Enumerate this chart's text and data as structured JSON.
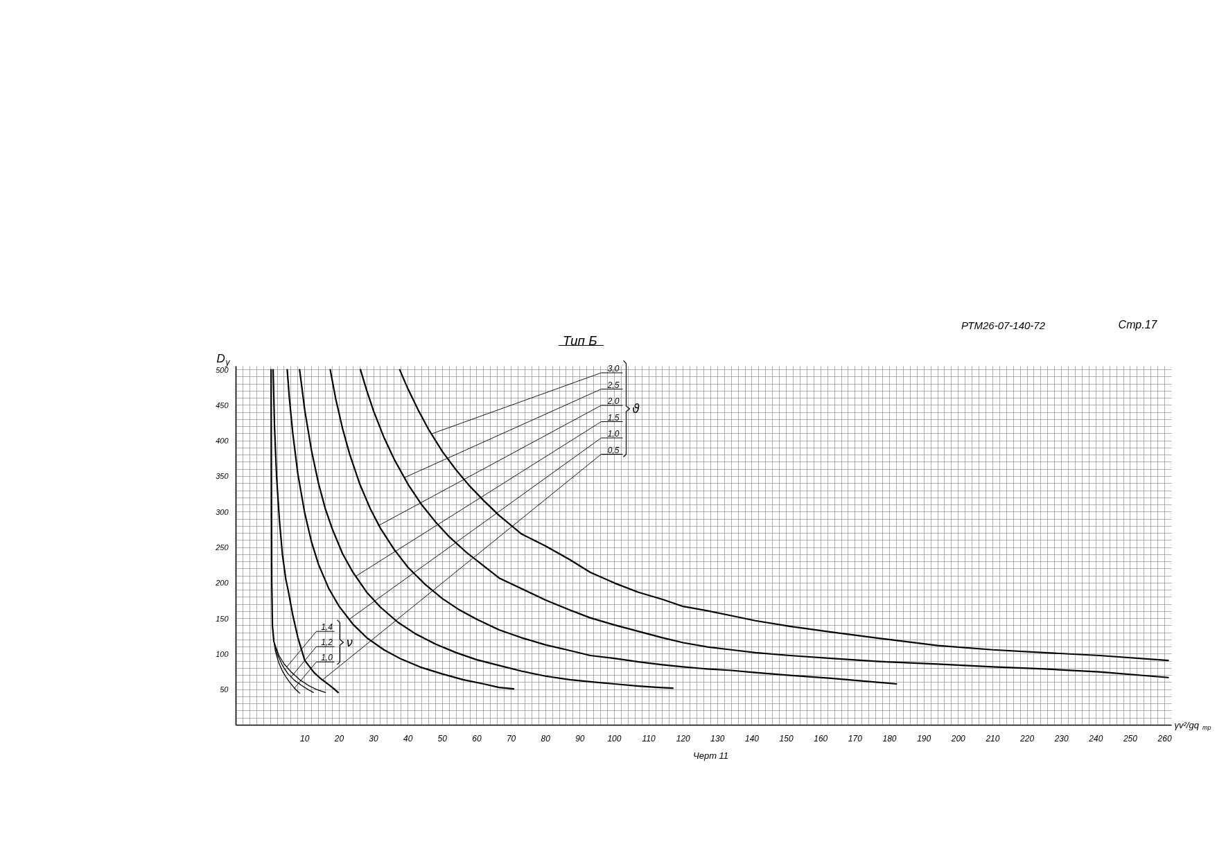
{
  "chart_data": {
    "type": "line",
    "title": "Тип Б",
    "xlabel": "γv²/gq$_{тр}$",
    "ylabel": "D$_{у}$",
    "annotations": [
      "РТМ26-07-140-72",
      "Стр.17",
      "Черт 11",
      "ϑ",
      "ν"
    ],
    "legend": "top left",
    "xlim": [
      -10,
      262
    ],
    "ylim": [
      0,
      505
    ],
    "xticks": [
      {
        "value": -10,
        "label": null
      },
      {
        "value": -8,
        "label": null
      },
      {
        "value": -6,
        "label": null
      },
      {
        "value": -4,
        "label": null
      },
      {
        "value": -2,
        "label": null
      },
      {
        "value": 0,
        "label": null
      },
      {
        "value": 2,
        "label": null
      },
      {
        "value": 4,
        "label": null
      },
      {
        "value": 6,
        "label": null
      },
      {
        "value": 8,
        "label": null
      },
      10,
      {
        "value": 12,
        "label": null
      },
      {
        "value": 14,
        "label": null
      },
      {
        "value": 16,
        "label": null
      },
      {
        "value": 18,
        "label": null
      },
      20,
      {
        "value": 22,
        "label": null
      },
      {
        "value": 24,
        "label": null
      },
      {
        "value": 26,
        "label": null
      },
      {
        "value": 28,
        "label": null
      },
      30,
      {
        "value": 32,
        "label": null
      },
      {
        "value": 34,
        "label": null
      },
      {
        "value": 36,
        "label": null
      },
      {
        "value": 38,
        "label": null
      },
      40,
      {
        "value": 42,
        "label": null
      },
      {
        "value": 44,
        "label": null
      },
      {
        "value": 46,
        "label": null
      },
      {
        "value": 48,
        "label": null
      },
      50,
      {
        "value": 52,
        "label": null
      },
      {
        "value": 54,
        "label": null
      },
      {
        "value": 56,
        "label": null
      },
      {
        "value": 58,
        "label": null
      },
      60,
      {
        "value": 62,
        "label": null
      },
      {
        "value": 64,
        "label": null
      },
      {
        "value": 66,
        "label": null
      },
      {
        "value": 68,
        "label": null
      },
      70,
      {
        "value": 72,
        "label": null
      },
      {
        "value": 74,
        "label": null
      },
      {
        "value": 76,
        "label": null
      },
      {
        "value": 78,
        "label": null
      },
      80,
      {
        "value": 82,
        "label": null
      },
      {
        "value": 84,
        "label": null
      },
      {
        "value": 86,
        "label": null
      },
      {
        "value": 88,
        "label": null
      },
      90,
      {
        "value": 92,
        "label": null
      },
      {
        "value": 94,
        "label": null
      },
      {
        "value": 96,
        "label": null
      },
      {
        "value": 98,
        "label": null
      },
      100,
      {
        "value": 102,
        "label": null
      },
      {
        "value": 104,
        "label": null
      },
      {
        "value": 106,
        "label": null
      },
      {
        "value": 108,
        "label": null
      },
      110,
      {
        "value": 112,
        "label": null
      },
      {
        "value": 114,
        "label": null
      },
      {
        "value": 116,
        "label": null
      },
      {
        "value": 118,
        "label": null
      },
      120,
      {
        "value": 122,
        "label": null
      },
      {
        "value": 124,
        "label": null
      },
      {
        "value": 126,
        "label": null
      },
      {
        "value": 128,
        "label": null
      },
      130,
      {
        "value": 132,
        "label": null
      },
      {
        "value": 134,
        "label": null
      },
      {
        "value": 136,
        "label": null
      },
      {
        "value": 138,
        "label": null
      },
      140,
      {
        "value": 142,
        "label": null
      },
      {
        "value": 144,
        "label": null
      },
      {
        "value": 146,
        "label": null
      },
      {
        "value": 148,
        "label": null
      },
      150,
      {
        "value": 152,
        "label": null
      },
      {
        "value": 154,
        "label": null
      },
      {
        "value": 156,
        "label": null
      },
      {
        "value": 158,
        "label": null
      },
      160,
      {
        "value": 162,
        "label": null
      },
      {
        "value": 164,
        "label": null
      },
      {
        "value": 166,
        "label": null
      },
      {
        "value": 168,
        "label": null
      },
      170,
      {
        "value": 172,
        "label": null
      },
      {
        "value": 174,
        "label": null
      },
      {
        "value": 176,
        "label": null
      },
      {
        "value": 178,
        "label": null
      },
      180,
      {
        "value": 182,
        "label": null
      },
      {
        "value": 184,
        "label": null
      },
      {
        "value": 186,
        "label": null
      },
      {
        "value": 188,
        "label": null
      },
      190,
      {
        "value": 192,
        "label": null
      },
      {
        "value": 194,
        "label": null
      },
      {
        "value": 196,
        "label": null
      },
      {
        "value": 198,
        "label": null
      },
      200,
      {
        "value": 202,
        "label": null
      },
      {
        "value": 204,
        "label": null
      },
      {
        "value": 206,
        "label": null
      },
      {
        "value": 208,
        "label": null
      },
      210,
      {
        "value": 212,
        "label": null
      },
      {
        "value": 214,
        "label": null
      },
      {
        "value": 216,
        "label": null
      },
      {
        "value": 218,
        "label": null
      },
      220,
      {
        "value": 222,
        "label": null
      },
      {
        "value": 224,
        "label": null
      },
      {
        "value": 226,
        "label": null
      },
      {
        "value": 228,
        "label": null
      },
      230,
      {
        "value": 232,
        "label": null
      },
      {
        "value": 234,
        "label": null
      },
      {
        "value": 236,
        "label": null
      },
      {
        "value": 238,
        "label": null
      },
      240,
      {
        "value": 242,
        "label": null
      },
      {
        "value": 244,
        "label": null
      },
      {
        "value": 246,
        "label": null
      },
      {
        "value": 248,
        "label": null
      },
      250,
      {
        "value": 252,
        "label": null
      },
      {
        "value": 254,
        "label": null
      },
      {
        "value": 256,
        "label": null
      },
      {
        "value": 258,
        "label": null
      },
      260
    ],
    "yticks": [
      {
        "value": 0,
        "label": null
      },
      {
        "value": 10,
        "label": null
      },
      {
        "value": 20,
        "label": null
      },
      {
        "value": 30,
        "label": null
      },
      {
        "value": 40,
        "label": null
      },
      50,
      {
        "value": 60,
        "label": null
      },
      {
        "value": 70,
        "label": null
      },
      {
        "value": 80,
        "label": null
      },
      {
        "value": 90,
        "label": null
      },
      100,
      {
        "value": 110,
        "label": null
      },
      {
        "value": 120,
        "label": null
      },
      {
        "value": 130,
        "label": null
      },
      {
        "value": 140,
        "label": null
      },
      150,
      {
        "value": 160,
        "label": null
      },
      {
        "value": 170,
        "label": null
      },
      {
        "value": 180,
        "label": null
      },
      {
        "value": 190,
        "label": null
      },
      200,
      {
        "value": 210,
        "label": null
      },
      {
        "value": 220,
        "label": null
      },
      {
        "value": 230,
        "label": null
      },
      {
        "value": 240,
        "label": null
      },
      250,
      {
        "value": 260,
        "label": null
      },
      {
        "value": 270,
        "label": null
      },
      {
        "value": 280,
        "label": null
      },
      {
        "value": 290,
        "label": null
      },
      300,
      {
        "value": 310,
        "label": null
      },
      {
        "value": 320,
        "label": null
      },
      {
        "value": 330,
        "label": null
      },
      {
        "value": 340,
        "label": null
      },
      350,
      {
        "value": 360,
        "label": null
      },
      {
        "value": 370,
        "label": null
      },
      {
        "value": 380,
        "label": null
      },
      {
        "value": 390,
        "label": null
      },
      400,
      {
        "value": 410,
        "label": null
      },
      {
        "value": 420,
        "label": null
      },
      {
        "value": 430,
        "label": null
      },
      {
        "value": 440,
        "label": null
      },
      450,
      {
        "value": 460,
        "label": null
      },
      {
        "value": 470,
        "label": null
      },
      {
        "value": 480,
        "label": null
      },
      {
        "value": 490,
        "label": null
      },
      500
    ],
    "grid": true,
    "line_style": "solid",
    "series": [
      {
        "name": "3,0",
        "color": "#000000",
        "x": [
          37.6,
          40,
          43,
          46,
          50,
          54,
          58,
          62,
          66.5,
          73,
          80,
          87,
          93,
          100,
          107,
          114,
          120,
          127,
          134,
          141,
          151,
          163,
          179,
          194,
          210,
          225,
          241,
          261
        ],
        "values": [
          500,
          473,
          443,
          416,
          385,
          359,
          336,
          316,
          295,
          269,
          252,
          233,
          215,
          200,
          187,
          177,
          167,
          161,
          154,
          147,
          139,
          131,
          121,
          112,
          106,
          102,
          98,
          91
        ]
      },
      {
        "name": "2,5",
        "color": "#000000",
        "x": [
          26.2,
          28,
          30,
          33,
          36,
          40,
          44,
          48,
          52,
          57,
          62,
          66.5,
          73,
          80,
          87,
          93,
          100,
          107,
          114,
          120,
          127,
          134,
          141,
          151,
          163,
          179,
          194,
          210,
          225,
          241,
          261
        ],
        "values": [
          500,
          471,
          442,
          405,
          374,
          339,
          310,
          286,
          265,
          243,
          224,
          207,
          192,
          176,
          162,
          151,
          141,
          132,
          123,
          116,
          110,
          106,
          102,
          98,
          94,
          89,
          86,
          82,
          79,
          75,
          67
        ]
      },
      {
        "name": "2,0",
        "color": "#000000",
        "x": [
          17.4,
          19,
          21,
          23,
          26,
          29,
          32,
          36,
          40,
          45,
          50,
          55,
          60,
          66.5,
          73,
          80,
          87,
          93,
          100,
          107,
          114,
          120,
          127,
          134,
          141,
          151,
          163,
          182
        ],
        "values": [
          500,
          459,
          417,
          382,
          339,
          305,
          277,
          247,
          222,
          198,
          178,
          162,
          149,
          134,
          123,
          113,
          105,
          98,
          94,
          89,
          85,
          82,
          79,
          77,
          74,
          70,
          66,
          58
        ]
      },
      {
        "name": "1,5",
        "color": "#000000",
        "x": [
          8.5,
          10,
          12,
          14,
          16,
          18,
          21,
          24,
          28,
          32,
          37,
          42,
          48,
          54,
          60,
          66.5,
          73,
          80,
          87,
          93,
          100,
          107,
          113,
          117
        ],
        "values": [
          500,
          443,
          385,
          340,
          304,
          276,
          241,
          215,
          187,
          166,
          145,
          129,
          114,
          102,
          92,
          84,
          76,
          69,
          64,
          61,
          58,
          55,
          53,
          52
        ]
      },
      {
        "name": "1,0",
        "color": "#000000",
        "x": [
          4.9,
          5.5,
          6.5,
          8,
          10,
          12,
          14,
          17,
          20,
          24,
          28,
          33,
          38,
          44,
          50,
          56,
          62,
          66.5,
          70.7
        ],
        "values": [
          500,
          461,
          411,
          353,
          298,
          257,
          226,
          192,
          167,
          142,
          123,
          106,
          93,
          81,
          72,
          64,
          58,
          53,
          51
        ]
      },
      {
        "name": "0,5",
        "color": "#000000",
        "x": [
          0.8,
          1.2,
          1.8,
          2.6,
          3.5,
          4.5,
          5.2,
          6.5,
          8,
          10,
          12.7,
          14.5,
          16.7,
          18.5,
          19.7
        ],
        "values": [
          500,
          420,
          350,
          290,
          240,
          205,
          189,
          155,
          123,
          91,
          74,
          66,
          58,
          51,
          46
        ]
      },
      {
        "color": "#000000",
        "x": [
          0.2,
          0.3,
          0.4,
          0.6,
          1
        ],
        "values": [
          500,
          350,
          200,
          140,
          118
        ]
      },
      {
        "name": "1,4",
        "color": "#000000",
        "x": [
          1,
          2.5,
          4,
          6,
          8.5,
          11,
          13.5,
          16
        ],
        "values": [
          118,
          98,
          86,
          75,
          64,
          56,
          50,
          46
        ]
      },
      {
        "name": "1,2",
        "color": "#000000",
        "x": [
          1,
          2,
          3.5,
          5,
          7,
          9,
          11,
          12.5
        ],
        "values": [
          118,
          100,
          84,
          73,
          63,
          56,
          50,
          46
        ]
      },
      {
        "name": "1,0",
        "color": "#000000",
        "x": [
          1,
          1.5,
          2.5,
          3.5,
          4.5,
          5.5,
          7,
          8.5
        ],
        "values": [
          118,
          103,
          87,
          76,
          68,
          61,
          52,
          45
        ]
      }
    ]
  }
}
